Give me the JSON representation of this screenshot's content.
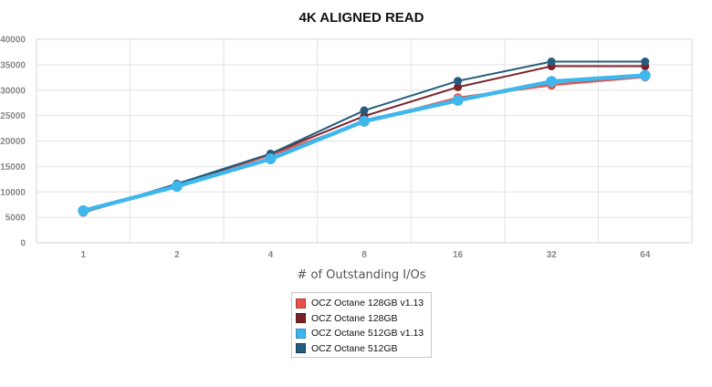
{
  "chart_data": {
    "type": "line",
    "title": "4K ALIGNED READ",
    "xlabel": "# of Outstanding I/Os",
    "ylabel": "",
    "categories": [
      "1",
      "2",
      "4",
      "8",
      "16",
      "32",
      "64"
    ],
    "ylim": [
      0,
      40000
    ],
    "yticks": [
      0,
      5000,
      10000,
      15000,
      20000,
      25000,
      30000,
      35000,
      40000
    ],
    "grid": true,
    "legend_position": "bottom",
    "series": [
      {
        "name": "OCZ Octane 128GB v1.13",
        "color": "#e8524a",
        "values": [
          6000,
          11200,
          17300,
          23700,
          28500,
          31000,
          32600
        ]
      },
      {
        "name": "OCZ Octane 128GB",
        "color": "#7a2228",
        "values": [
          6000,
          11400,
          17500,
          24900,
          30600,
          34700,
          34700
        ]
      },
      {
        "name": "OCZ Octane 512GB v1.13",
        "color": "#3fb6ec",
        "values": [
          6300,
          11100,
          16500,
          23900,
          28000,
          31700,
          32900
        ]
      },
      {
        "name": "OCZ Octane 512GB",
        "color": "#255d7e",
        "values": [
          6000,
          11600,
          17500,
          26000,
          31800,
          35600,
          35600
        ]
      }
    ]
  }
}
